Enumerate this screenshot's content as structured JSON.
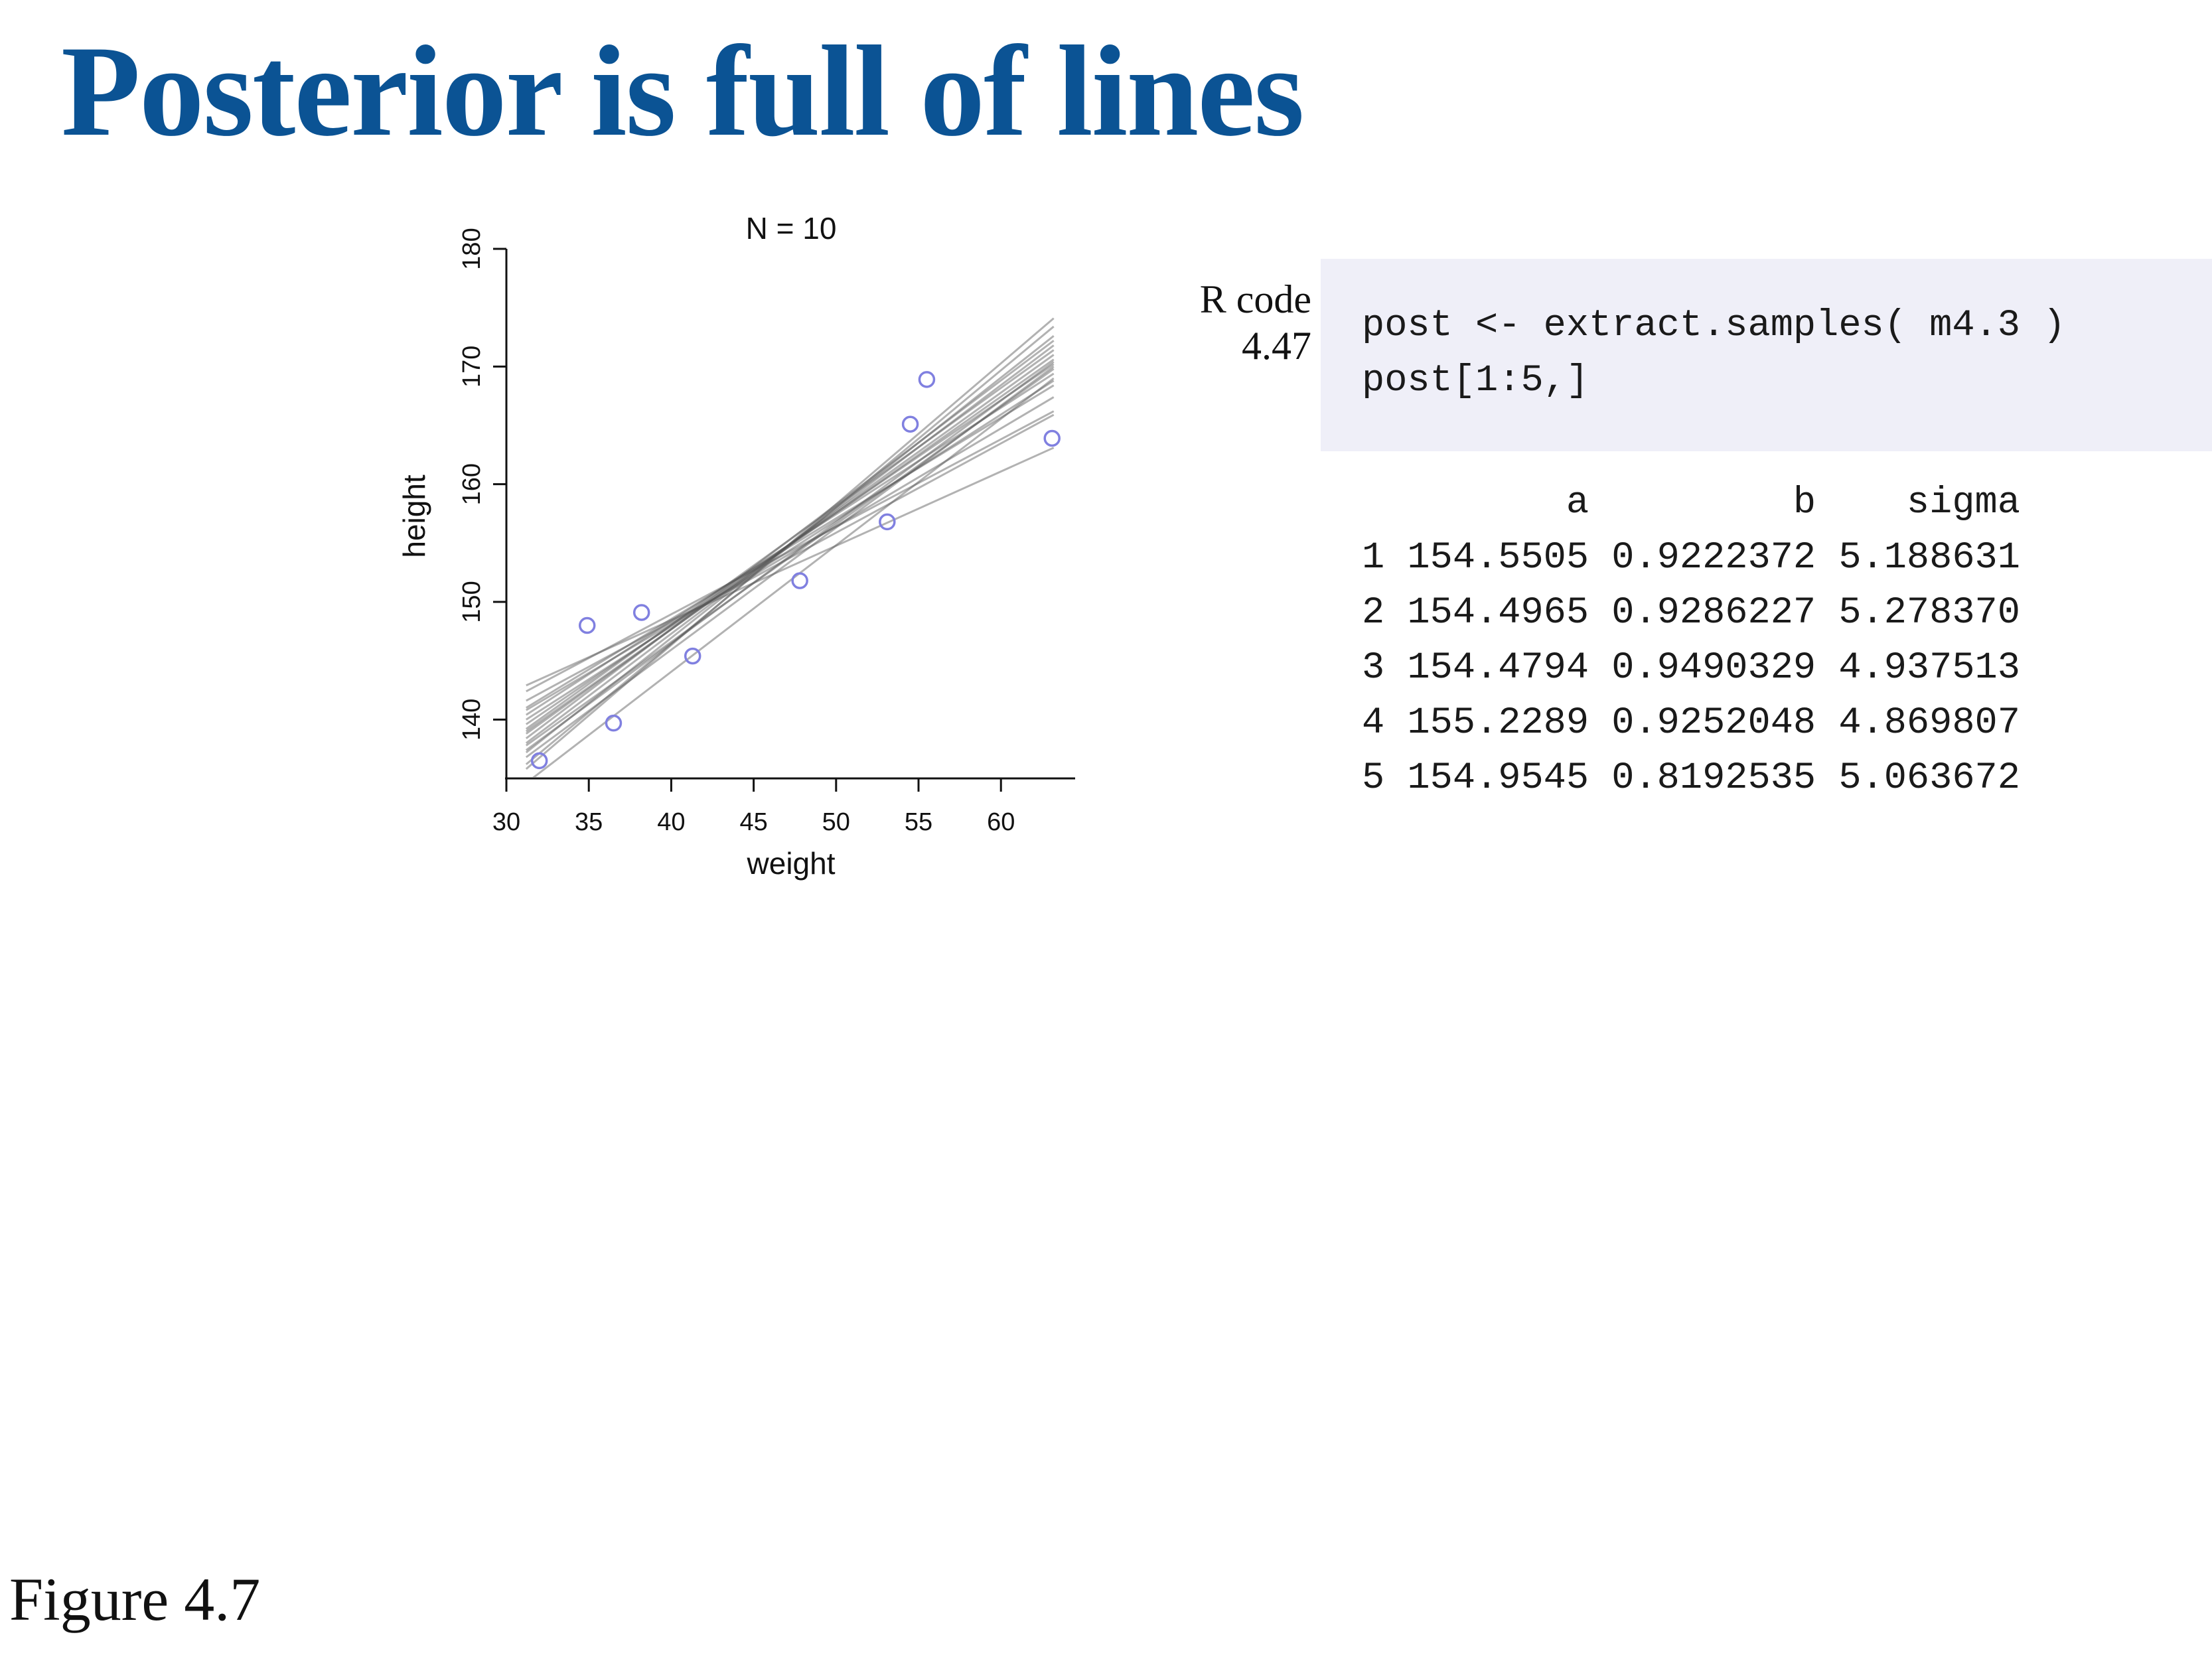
{
  "slide": {
    "title": "Posterior is full of lines",
    "figure_label": "Figure 4.7"
  },
  "code": {
    "label_line1": "R code",
    "label_line2": "4.47",
    "lines": [
      "post <- extract.samples( m4.3 )",
      "post[1:5,]"
    ],
    "output": [
      "         a         b    sigma",
      "1 154.5505 0.9222372 5.188631",
      "2 154.4965 0.9286227 5.278370",
      "3 154.4794 0.9490329 4.937513",
      "4 155.2289 0.9252048 4.869807",
      "5 154.9545 0.8192535 5.063672"
    ]
  },
  "chart_data": {
    "type": "scatter",
    "title": "N = 10",
    "xlabel": "weight",
    "ylabel": "height",
    "xlim": [
      30,
      64.5
    ],
    "ylim": [
      135,
      180
    ],
    "xticks": [
      30,
      35,
      40,
      45,
      50,
      55,
      60
    ],
    "yticks": [
      140,
      150,
      160,
      170,
      180
    ],
    "grid": false,
    "point_color": "#8080e0",
    "line_color": "#555555",
    "points": [
      {
        "x": 32.0,
        "y": 136.5
      },
      {
        "x": 34.9,
        "y": 148.0
      },
      {
        "x": 36.5,
        "y": 139.7
      },
      {
        "x": 38.2,
        "y": 149.1
      },
      {
        "x": 41.3,
        "y": 145.4
      },
      {
        "x": 47.8,
        "y": 151.8
      },
      {
        "x": 53.1,
        "y": 156.8
      },
      {
        "x": 54.5,
        "y": 165.1
      },
      {
        "x": 55.5,
        "y": 168.9
      },
      {
        "x": 63.1,
        "y": 163.9
      }
    ],
    "lines": [
      {
        "x0": 31.2,
        "y0": 135.8,
        "x1": 63.2,
        "y1": 174.1
      },
      {
        "x0": 31.2,
        "y0": 137.2,
        "x1": 63.2,
        "y1": 172.6
      },
      {
        "x0": 31.2,
        "y0": 138.0,
        "x1": 63.2,
        "y1": 171.8
      },
      {
        "x0": 31.2,
        "y0": 138.8,
        "x1": 63.2,
        "y1": 171.0
      },
      {
        "x0": 31.2,
        "y0": 139.6,
        "x1": 63.2,
        "y1": 170.2
      },
      {
        "x0": 31.2,
        "y0": 140.4,
        "x1": 63.2,
        "y1": 169.4
      },
      {
        "x0": 31.2,
        "y0": 141.0,
        "x1": 63.2,
        "y1": 168.4
      },
      {
        "x0": 31.2,
        "y0": 142.4,
        "x1": 63.2,
        "y1": 166.2
      },
      {
        "x0": 31.2,
        "y0": 142.9,
        "x1": 63.2,
        "y1": 163.1
      },
      {
        "x0": 31.2,
        "y0": 136.8,
        "x1": 63.2,
        "y1": 170.0
      },
      {
        "x0": 31.2,
        "y0": 137.8,
        "x1": 63.2,
        "y1": 169.8
      },
      {
        "x0": 31.2,
        "y0": 139.2,
        "x1": 63.2,
        "y1": 171.4
      },
      {
        "x0": 31.2,
        "y0": 140.0,
        "x1": 63.2,
        "y1": 168.8
      },
      {
        "x0": 31.2,
        "y0": 141.6,
        "x1": 63.2,
        "y1": 165.9
      },
      {
        "x0": 31.2,
        "y0": 138.4,
        "x1": 63.2,
        "y1": 172.2
      },
      {
        "x0": 31.2,
        "y0": 134.6,
        "x1": 63.2,
        "y1": 169.0
      },
      {
        "x0": 31.2,
        "y0": 136.2,
        "x1": 63.2,
        "y1": 173.4
      },
      {
        "x0": 31.2,
        "y0": 139.0,
        "x1": 63.2,
        "y1": 170.6
      },
      {
        "x0": 31.2,
        "y0": 140.8,
        "x1": 63.2,
        "y1": 167.4
      },
      {
        "x0": 31.2,
        "y0": 137.4,
        "x1": 63.2,
        "y1": 170.4
      }
    ]
  }
}
